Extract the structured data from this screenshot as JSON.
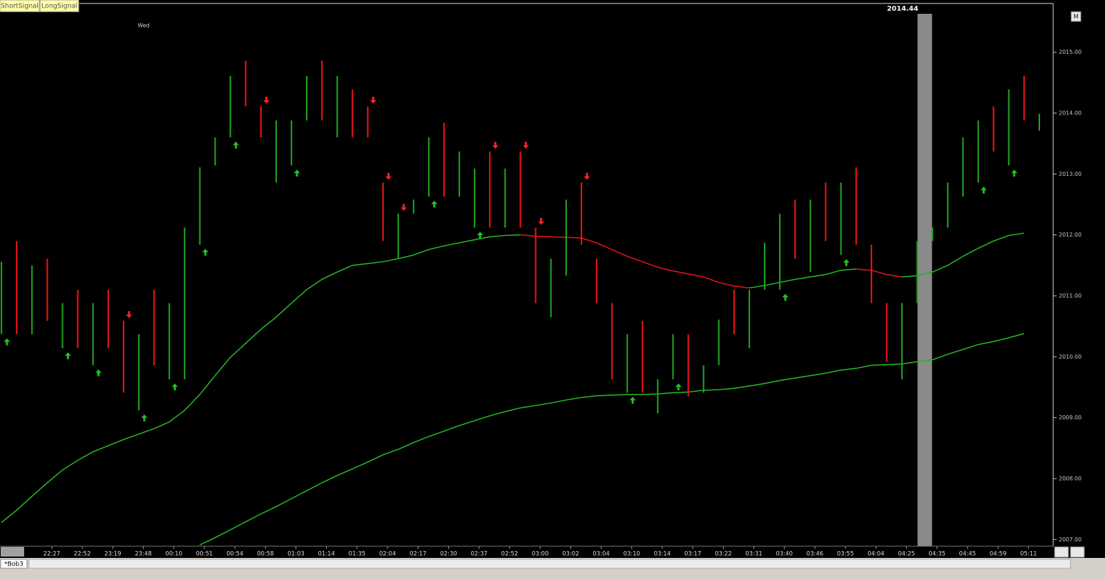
{
  "toolbar": {
    "buttons": [
      "ShortSignal",
      "LongSignal"
    ]
  },
  "tab": "*Bob3",
  "corner_button": "M",
  "chart_data": {
    "type": "footprint",
    "day_label": "Wed",
    "price_label": "2014.44",
    "up_color": "#1f9f1f",
    "down_color": "#e81414",
    "rise_color": "#24b424",
    "fall_color": "#e41414",
    "bars": {
      "high": [
        2011.56,
        2011.9,
        2011.5,
        2011.61,
        2010.88,
        2011.1,
        2010.88,
        2011.1,
        2010.59,
        2010.37,
        2011.1,
        2010.88,
        2012.12,
        2013.11,
        2013.6,
        2014.61,
        2014.86,
        2014.11,
        2013.88,
        2013.88,
        2014.61,
        2014.86,
        2014.61,
        2014.39,
        2014.11,
        2012.86,
        2012.35,
        2012.58,
        2013.6,
        2013.84,
        2013.37,
        2013.09,
        2013.37,
        2013.09,
        2013.37,
        2012.12,
        2011.61,
        2012.58,
        2012.86,
        2011.61,
        2010.88,
        2010.37,
        2010.59,
        2009.63,
        2010.37,
        2010.37,
        2009.86,
        2010.61,
        2011.1,
        2011.1,
        2011.87,
        2012.35,
        2012.58,
        2012.58,
        2012.86,
        2012.86,
        2013.11,
        2011.84,
        2010.88,
        2010.88,
        2011.9,
        2012.12,
        2012.86,
        2013.6,
        2013.88,
        2014.11,
        2014.39,
        2014.61,
        2013.99
      ],
      "low": [
        2010.37,
        2010.37,
        2010.37,
        2010.59,
        2010.14,
        2010.14,
        2009.86,
        2010.14,
        2009.41,
        2009.12,
        2009.86,
        2009.63,
        2009.63,
        2011.84,
        2013.14,
        2013.6,
        2014.11,
        2013.6,
        2012.86,
        2013.14,
        2013.88,
        2013.88,
        2013.6,
        2013.6,
        2013.6,
        2011.9,
        2011.61,
        2012.35,
        2012.63,
        2012.63,
        2012.63,
        2012.12,
        2012.12,
        2012.12,
        2012.12,
        2010.88,
        2010.65,
        2011.33,
        2011.84,
        2010.88,
        2009.63,
        2009.41,
        2009.41,
        2009.07,
        2009.63,
        2009.35,
        2009.41,
        2009.86,
        2010.37,
        2010.14,
        2011.1,
        2011.1,
        2011.61,
        2011.39,
        2011.9,
        2011.67,
        2011.84,
        2010.88,
        2009.92,
        2009.63,
        2010.88,
        2011.9,
        2012.12,
        2012.63,
        2012.86,
        2013.37,
        2013.14,
        2013.88,
        2013.71
      ],
      "up": [
        true,
        false,
        true,
        false,
        true,
        false,
        true,
        false,
        false,
        true,
        false,
        true,
        true,
        true,
        true,
        true,
        false,
        false,
        true,
        true,
        true,
        false,
        true,
        false,
        false,
        false,
        true,
        true,
        true,
        false,
        true,
        true,
        false,
        true,
        false,
        false,
        true,
        true,
        false,
        false,
        false,
        true,
        false,
        true,
        true,
        false,
        true,
        true,
        false,
        true,
        true,
        true,
        false,
        true,
        false,
        true,
        false,
        false,
        false,
        true,
        true,
        true,
        true,
        true,
        true,
        false,
        true,
        false,
        true
      ]
    },
    "moving_averages": [
      {
        "values": [
          2007.28,
          2007.48,
          2007.71,
          2007.93,
          2008.14,
          2008.3,
          2008.44,
          2008.54,
          2008.64,
          2008.73,
          2008.82,
          2008.93,
          2009.12,
          2009.38,
          2009.69,
          2009.99,
          2010.22,
          2010.45,
          2010.65,
          2010.88,
          2011.1,
          2011.27,
          2011.39,
          2011.5,
          2011.53,
          2011.56,
          2011.61,
          2011.67,
          2011.76,
          2011.82,
          2011.87,
          2011.92,
          2011.97,
          2011.99,
          2012.0,
          2011.98,
          2011.97,
          2011.96,
          2011.95,
          2011.87,
          2011.76,
          2011.65,
          2011.56,
          2011.47,
          2011.41,
          2011.36,
          2011.31,
          2011.22,
          2011.16,
          2011.13,
          2011.17,
          2011.22,
          2011.27,
          2011.31,
          2011.35,
          2011.42,
          2011.44,
          2011.42,
          2011.35,
          2011.31,
          2011.33,
          2011.39,
          2011.5,
          2011.65,
          2011.78,
          2011.9,
          2011.99,
          2012.03,
          null
        ]
      },
      {
        "values": [
          null,
          null,
          null,
          null,
          null,
          null,
          null,
          null,
          null,
          null,
          null,
          null,
          null,
          2006.91,
          2007.03,
          2007.16,
          2007.29,
          2007.42,
          2007.54,
          2007.67,
          2007.8,
          2007.93,
          2008.05,
          2008.16,
          2008.27,
          2008.39,
          2008.48,
          2008.59,
          2008.69,
          2008.78,
          2008.87,
          2008.95,
          2009.03,
          2009.1,
          2009.16,
          2009.2,
          2009.24,
          2009.29,
          2009.33,
          2009.36,
          2009.37,
          2009.38,
          2009.38,
          2009.39,
          2009.41,
          2009.42,
          2009.45,
          2009.46,
          2009.48,
          2009.52,
          2009.56,
          2009.61,
          2009.65,
          2009.69,
          2009.73,
          2009.78,
          2009.81,
          2009.86,
          2009.87,
          2009.88,
          2009.92,
          2009.95,
          2010.04,
          2010.12,
          2010.2,
          2010.25,
          2010.31,
          2010.38,
          null
        ]
      }
    ],
    "signals": {
      "up": [
        0,
        4,
        6,
        9,
        11,
        13,
        15,
        19,
        28,
        31,
        41,
        44,
        51,
        55,
        64,
        66
      ],
      "down": [
        8,
        17,
        24,
        25,
        26,
        32,
        34,
        35,
        38
      ]
    },
    "cursor_bar": 60.5,
    "x_labels": [
      "22:27",
      "22:52",
      "23:19",
      "23:48",
      "00:10",
      "00:51",
      "00:54",
      "00:58",
      "01:03",
      "01:14",
      "01:35",
      "02:04",
      "02:17",
      "02:30",
      "02:37",
      "02:52",
      "03:00",
      "03:02",
      "03:04",
      "03:10",
      "03:14",
      "03:17",
      "03:22",
      "03:31",
      "03:40",
      "03:46",
      "03:55",
      "04:04",
      "04:25",
      "04:35",
      "04:45",
      "04:59",
      "05:11"
    ],
    "ylim": [
      2006.89,
      2015.8
    ],
    "yticks": [
      {
        "value": 2007,
        "label": "2007.00"
      },
      {
        "value": 2008,
        "label": "2008.00"
      },
      {
        "value": 2009,
        "label": "2009.00"
      },
      {
        "value": 2010,
        "label": "2010.00"
      },
      {
        "value": 2011,
        "label": "2011.00"
      },
      {
        "value": 2012,
        "label": "2012.00"
      },
      {
        "value": 2013,
        "label": "2013.00"
      },
      {
        "value": 2014,
        "label": "2014.00"
      },
      {
        "value": 2015,
        "label": "2015.00"
      }
    ]
  }
}
